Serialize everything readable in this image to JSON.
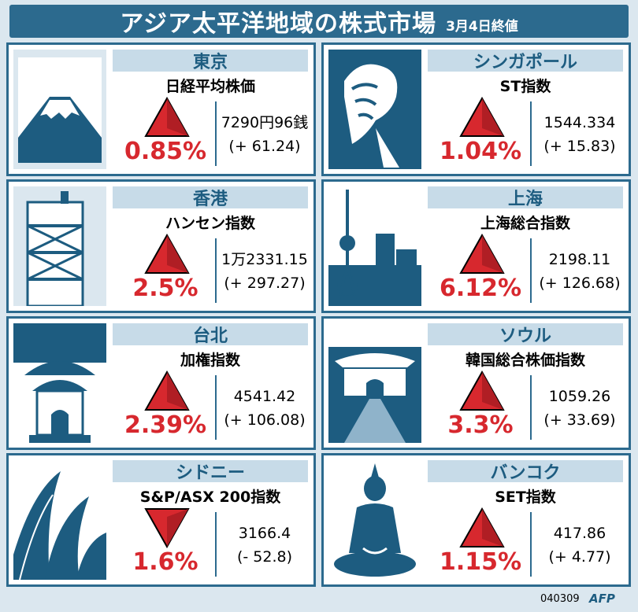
{
  "header": {
    "title": "アジア太平洋地域の株式市場",
    "date": "3月4日終値"
  },
  "markets": [
    {
      "city": "東京",
      "index": "日経平均株価",
      "direction": "up",
      "pct": "0.85%",
      "value": "7290円96銭",
      "change": "(+ 61.24)",
      "icon": "mount-fuji-icon"
    },
    {
      "city": "シンガポール",
      "index": "ST指数",
      "direction": "up",
      "pct": "1.04%",
      "value": "1544.334",
      "change": "(+ 15.83)",
      "icon": "merlion-icon"
    },
    {
      "city": "香港",
      "index": "ハンセン指数",
      "direction": "up",
      "pct": "2.5%",
      "value": "1万2331.15",
      "change": "(+ 297.27)",
      "icon": "hk-tower-icon"
    },
    {
      "city": "上海",
      "index": "上海総合指数",
      "direction": "up",
      "pct": "6.12%",
      "value": "2198.11",
      "change": "(+ 126.68)",
      "icon": "oriental-pearl-tower-icon"
    },
    {
      "city": "台北",
      "index": "加権指数",
      "direction": "up",
      "pct": "2.39%",
      "value": "4541.42",
      "change": "(+ 106.08)",
      "icon": "memorial-hall-icon"
    },
    {
      "city": "ソウル",
      "index": "韓国総合株価指数",
      "direction": "up",
      "pct": "3.3%",
      "value": "1059.26",
      "change": "(+ 33.69)",
      "icon": "seoul-gate-icon"
    },
    {
      "city": "シドニー",
      "index": "S&P/ASX 200指数",
      "direction": "down",
      "pct": "1.6%",
      "value": "3166.4",
      "change": "(- 52.8)",
      "icon": "opera-house-icon"
    },
    {
      "city": "バンコク",
      "index": "SET指数",
      "direction": "up",
      "pct": "1.15%",
      "value": "417.86",
      "change": "(+ 4.77)",
      "icon": "buddha-icon"
    }
  ],
  "footer": {
    "code": "040309",
    "logo": "AFP"
  },
  "colors": {
    "frame": "#2c6a8e",
    "icon_bg": "#1d5c80",
    "city_bar": "#c7dbe8",
    "pct": "#d7282e",
    "arrow": "#d7282e"
  }
}
